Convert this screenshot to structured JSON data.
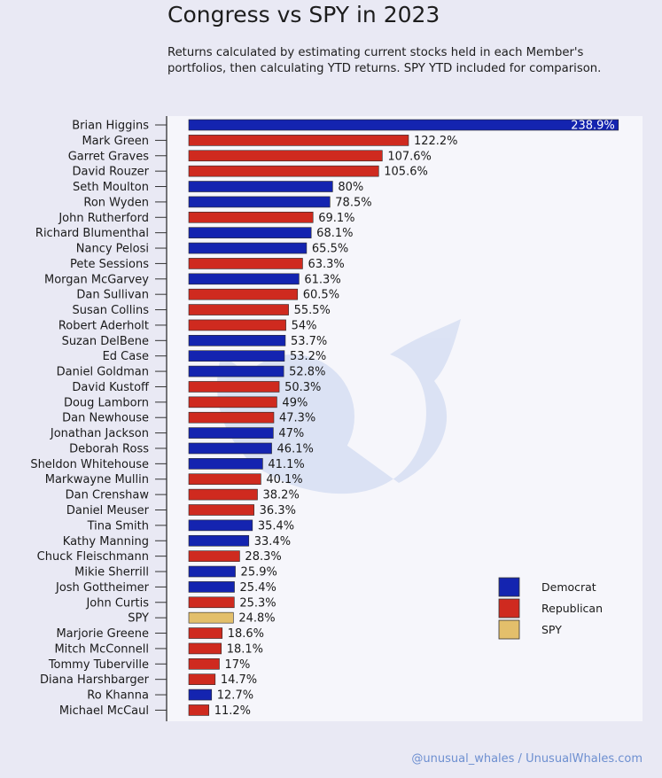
{
  "header": {
    "title": "Congress vs SPY in 2023",
    "subtitle": "Returns calculated by estimating current stocks held in each Member's portfolios, then calculating YTD returns. SPY YTD included for comparison."
  },
  "chart_data": {
    "type": "bar",
    "orientation": "horizontal",
    "unit": "%",
    "categories": [
      "Brian Higgins",
      "Mark Green",
      "Garret Graves",
      "David Rouzer",
      "Seth Moulton",
      "Ron Wyden",
      "John Rutherford",
      "Richard Blumenthal",
      "Nancy Pelosi",
      "Pete Sessions",
      "Morgan McGarvey",
      "Dan Sullivan",
      "Susan Collins",
      "Robert Aderholt",
      "Suzan DelBene",
      "Ed Case",
      "Daniel Goldman",
      "David Kustoff",
      "Doug Lamborn",
      "Dan Newhouse",
      "Jonathan Jackson",
      "Deborah Ross",
      "Sheldon Whitehouse",
      "Markwayne Mullin",
      "Dan Crenshaw",
      "Daniel Meuser",
      "Tina Smith",
      "Kathy Manning",
      "Chuck Fleischmann",
      "Mikie Sherrill",
      "Josh Gottheimer",
      "John Curtis",
      "SPY",
      "Marjorie Greene",
      "Mitch McConnell",
      "Tommy Tuberville",
      "Diana Harshbarger",
      "Ro Khanna",
      "Michael McCaul"
    ],
    "values": [
      238.9,
      122.2,
      107.6,
      105.6,
      80,
      78.5,
      69.1,
      68.1,
      65.5,
      63.3,
      61.3,
      60.5,
      55.5,
      54,
      53.7,
      53.2,
      52.8,
      50.3,
      49,
      47.3,
      47,
      46.1,
      41.1,
      40.1,
      38.2,
      36.3,
      35.4,
      33.4,
      28.3,
      25.9,
      25.4,
      25.3,
      24.8,
      18.6,
      18.1,
      17,
      14.7,
      12.7,
      11.2
    ],
    "labels": [
      "238.9%",
      "122.2%",
      "107.6%",
      "105.6%",
      "80%",
      "78.5%",
      "69.1%",
      "68.1%",
      "65.5%",
      "63.3%",
      "61.3%",
      "60.5%",
      "55.5%",
      "54%",
      "53.7%",
      "53.2%",
      "52.8%",
      "50.3%",
      "49%",
      "47.3%",
      "47%",
      "46.1%",
      "41.1%",
      "40.1%",
      "38.2%",
      "36.3%",
      "35.4%",
      "33.4%",
      "28.3%",
      "25.9%",
      "25.4%",
      "25.3%",
      "24.8%",
      "18.6%",
      "18.1%",
      "17%",
      "14.7%",
      "12.7%",
      "11.2%"
    ],
    "groups": [
      "Democrat",
      "Republican",
      "Republican",
      "Republican",
      "Democrat",
      "Democrat",
      "Republican",
      "Democrat",
      "Democrat",
      "Republican",
      "Democrat",
      "Republican",
      "Republican",
      "Republican",
      "Democrat",
      "Democrat",
      "Democrat",
      "Republican",
      "Republican",
      "Republican",
      "Democrat",
      "Democrat",
      "Democrat",
      "Republican",
      "Republican",
      "Republican",
      "Democrat",
      "Democrat",
      "Republican",
      "Democrat",
      "Democrat",
      "Republican",
      "SPY",
      "Republican",
      "Republican",
      "Republican",
      "Republican",
      "Democrat",
      "Republican"
    ],
    "legend": [
      {
        "name": "Democrat",
        "color": "#1424b0"
      },
      {
        "name": "Republican",
        "color": "#cf2a1f"
      },
      {
        "name": "SPY",
        "color": "#e3bf6b"
      }
    ],
    "legend_placement": "right",
    "xlim": [
      0,
      240
    ],
    "grid": false
  },
  "colors": {
    "Democrat": "#1424b0",
    "Republican": "#cf2a1f",
    "SPY": "#e3bf6b",
    "plot_bg": "#f6f6fb",
    "page_bg": "#e9e9f4"
  },
  "footer": {
    "credit": "@unusual_whales / UnusualWhales.com"
  }
}
